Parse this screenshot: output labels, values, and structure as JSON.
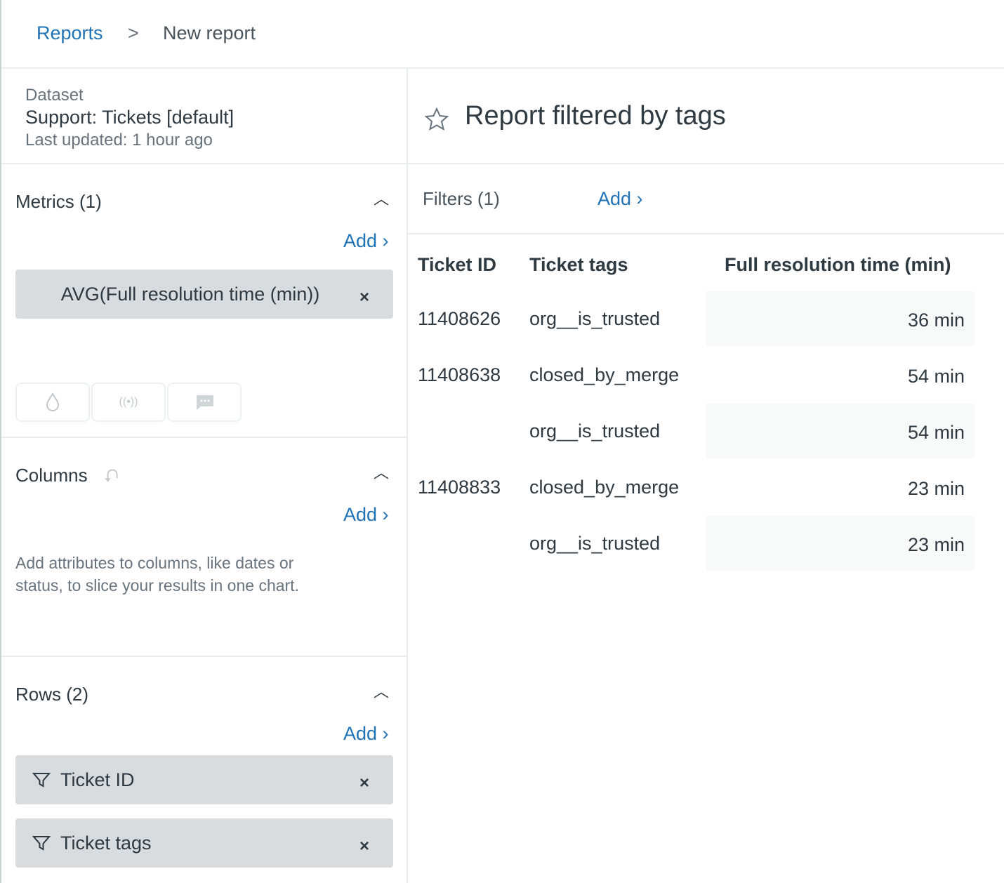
{
  "breadcrumb": {
    "root": "Reports",
    "separator": ">",
    "current": "New report"
  },
  "dataset": {
    "label": "Dataset",
    "name": "Support: Tickets [default]",
    "updated": "Last updated: 1 hour ago"
  },
  "metrics": {
    "title": "Metrics (1)",
    "add": "Add ›",
    "items": [
      "AVG(Full resolution time (min))"
    ],
    "icons": [
      "drop-icon",
      "broadcast-icon",
      "chat-bubble-icon"
    ]
  },
  "columns": {
    "title": "Columns",
    "add": "Add ›",
    "hint_line1": "Add attributes to columns, like dates or",
    "hint_line2": "status, to slice your results in one chart."
  },
  "rows": {
    "title": "Rows (2)",
    "add": "Add ›",
    "items": [
      "Ticket ID",
      "Ticket tags"
    ]
  },
  "report": {
    "title": "Report filtered by tags"
  },
  "filters": {
    "title": "Filters (1)",
    "add": "Add ›"
  },
  "table": {
    "headers": [
      "Ticket ID",
      "Ticket tags",
      "Full resolution time (min)"
    ],
    "rows": [
      [
        "11408626",
        "org__is_trusted",
        "36 min"
      ],
      [
        "11408638",
        "closed_by_merge",
        "54 min"
      ],
      [
        "",
        "org__is_trusted",
        "54 min"
      ],
      [
        "11408833",
        "closed_by_merge",
        "23 min"
      ],
      [
        "",
        "org__is_trusted",
        "23 min"
      ]
    ]
  },
  "colors": {
    "link": "#1f73b7",
    "chip": "#d8dcde",
    "text": "#2f3941"
  }
}
